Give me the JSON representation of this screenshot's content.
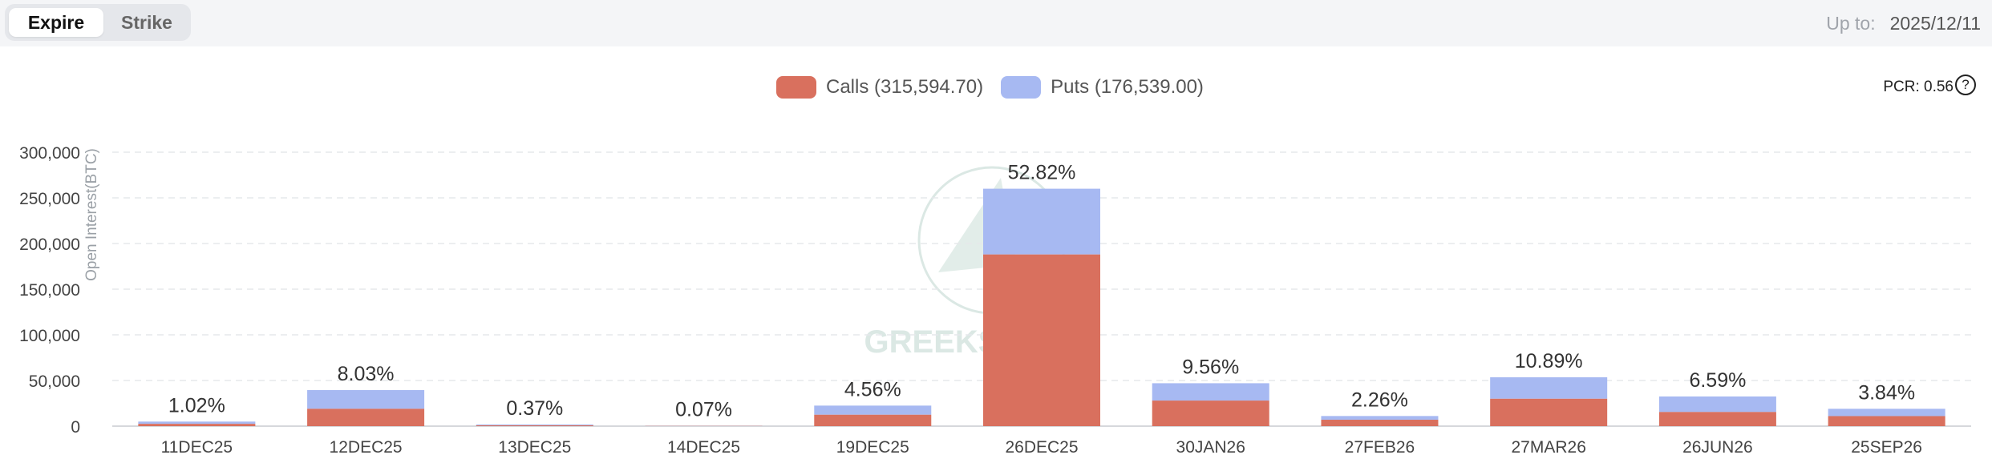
{
  "tabs": {
    "expire": "Expire",
    "strike": "Strike"
  },
  "upto": {
    "label": "Up to:",
    "value": "2025/12/11"
  },
  "pcr": {
    "label": "PCR: 0.56"
  },
  "help_glyph": "?",
  "colors": {
    "calls": "#d9705e",
    "puts": "#a7b9f2",
    "grid": "#e6e8eb",
    "watermark": "#dbe8e4"
  },
  "watermark_text": "GREEKS.LIVE",
  "chart_data": {
    "type": "bar",
    "stacked": true,
    "ylabel": "Open Interest(BTC)",
    "ylim": [
      0,
      300000
    ],
    "yticks": [
      "0",
      "50,000",
      "100,000",
      "150,000",
      "200,000",
      "250,000",
      "300,000"
    ],
    "grid": true,
    "legend_position": "top-center",
    "categories": [
      "11DEC25",
      "12DEC25",
      "13DEC25",
      "14DEC25",
      "19DEC25",
      "26DEC25",
      "30JAN26",
      "27FEB26",
      "27MAR26",
      "26JUN26",
      "25SEP26"
    ],
    "series": [
      {
        "name": "Calls (315,594.70)",
        "values": [
          2500,
          19000,
          900,
          200,
          12500,
          188000,
          28000,
          7000,
          30000,
          15500,
          11000
        ]
      },
      {
        "name": "Puts (176,539.00)",
        "values": [
          2500,
          20500,
          900,
          200,
          10000,
          72000,
          19000,
          4100,
          23500,
          17000,
          8000
        ]
      }
    ],
    "data_labels": [
      "1.02%",
      "8.03%",
      "0.37%",
      "0.07%",
      "4.56%",
      "52.82%",
      "9.56%",
      "2.26%",
      "10.89%",
      "6.59%",
      "3.84%"
    ]
  }
}
